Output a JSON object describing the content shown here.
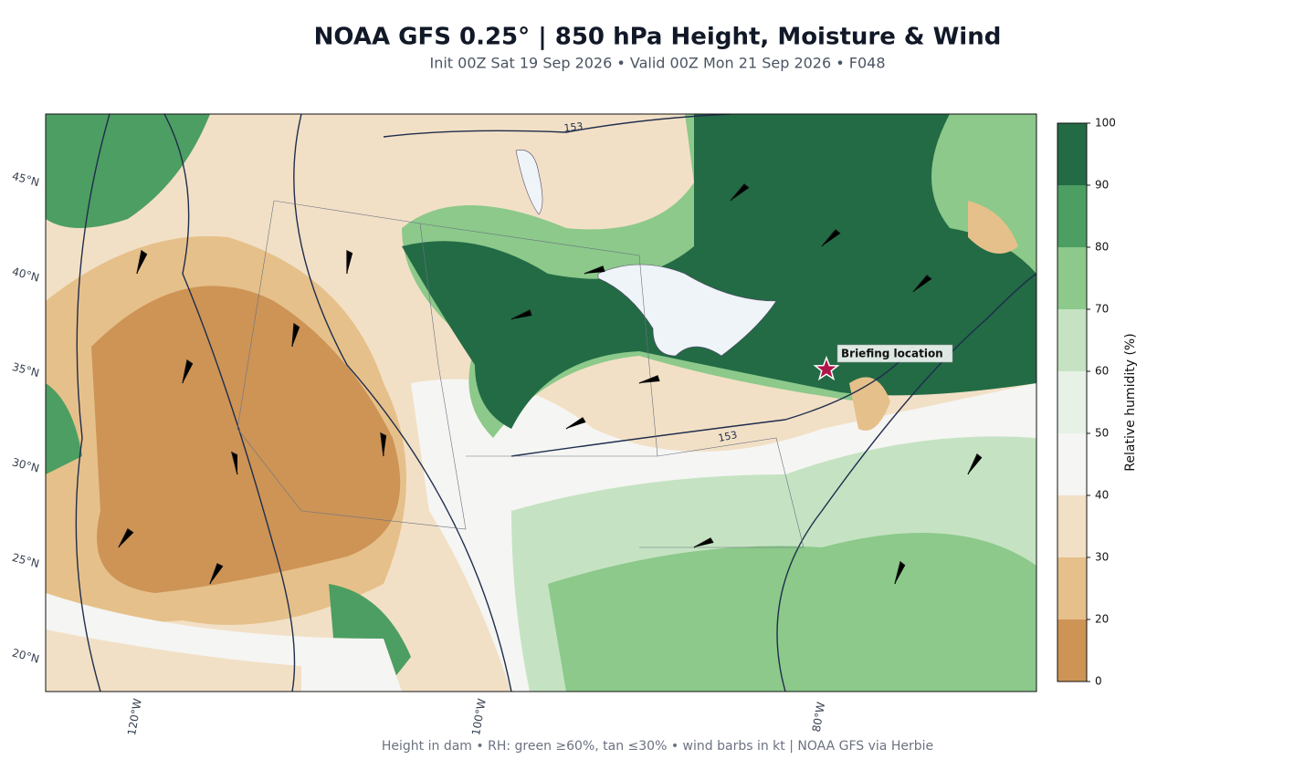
{
  "header": {
    "title": "NOAA GFS 0.25°  |  850 hPa Height, Moisture & Wind",
    "subtitle": "Init 00Z Sat 19 Sep 2026  •  Valid 00Z Mon 21 Sep 2026  •  F048"
  },
  "map": {
    "lat_labels": [
      "45°N",
      "40°N",
      "35°N",
      "30°N",
      "25°N",
      "20°N"
    ],
    "lon_labels": [
      "120°W",
      "100°W",
      "80°W"
    ],
    "contour_labels": [
      "153",
      "153"
    ],
    "annotation": "Briefing location"
  },
  "colorbar": {
    "label": "Relative humidity (%)",
    "levels": [
      0,
      20,
      30,
      40,
      50,
      60,
      70,
      80,
      90,
      100
    ],
    "colors": [
      "#cd9456",
      "#e6c08a",
      "#f2e0c6",
      "#f5f5f3",
      "#e7f1e6",
      "#c5e3c2",
      "#8cc98a",
      "#4d9e62",
      "#226b45"
    ]
  },
  "footer": "Height in dam • RH: green ≥60%, tan ≤30% • wind barbs in kt  |  NOAA GFS via Herbie"
}
